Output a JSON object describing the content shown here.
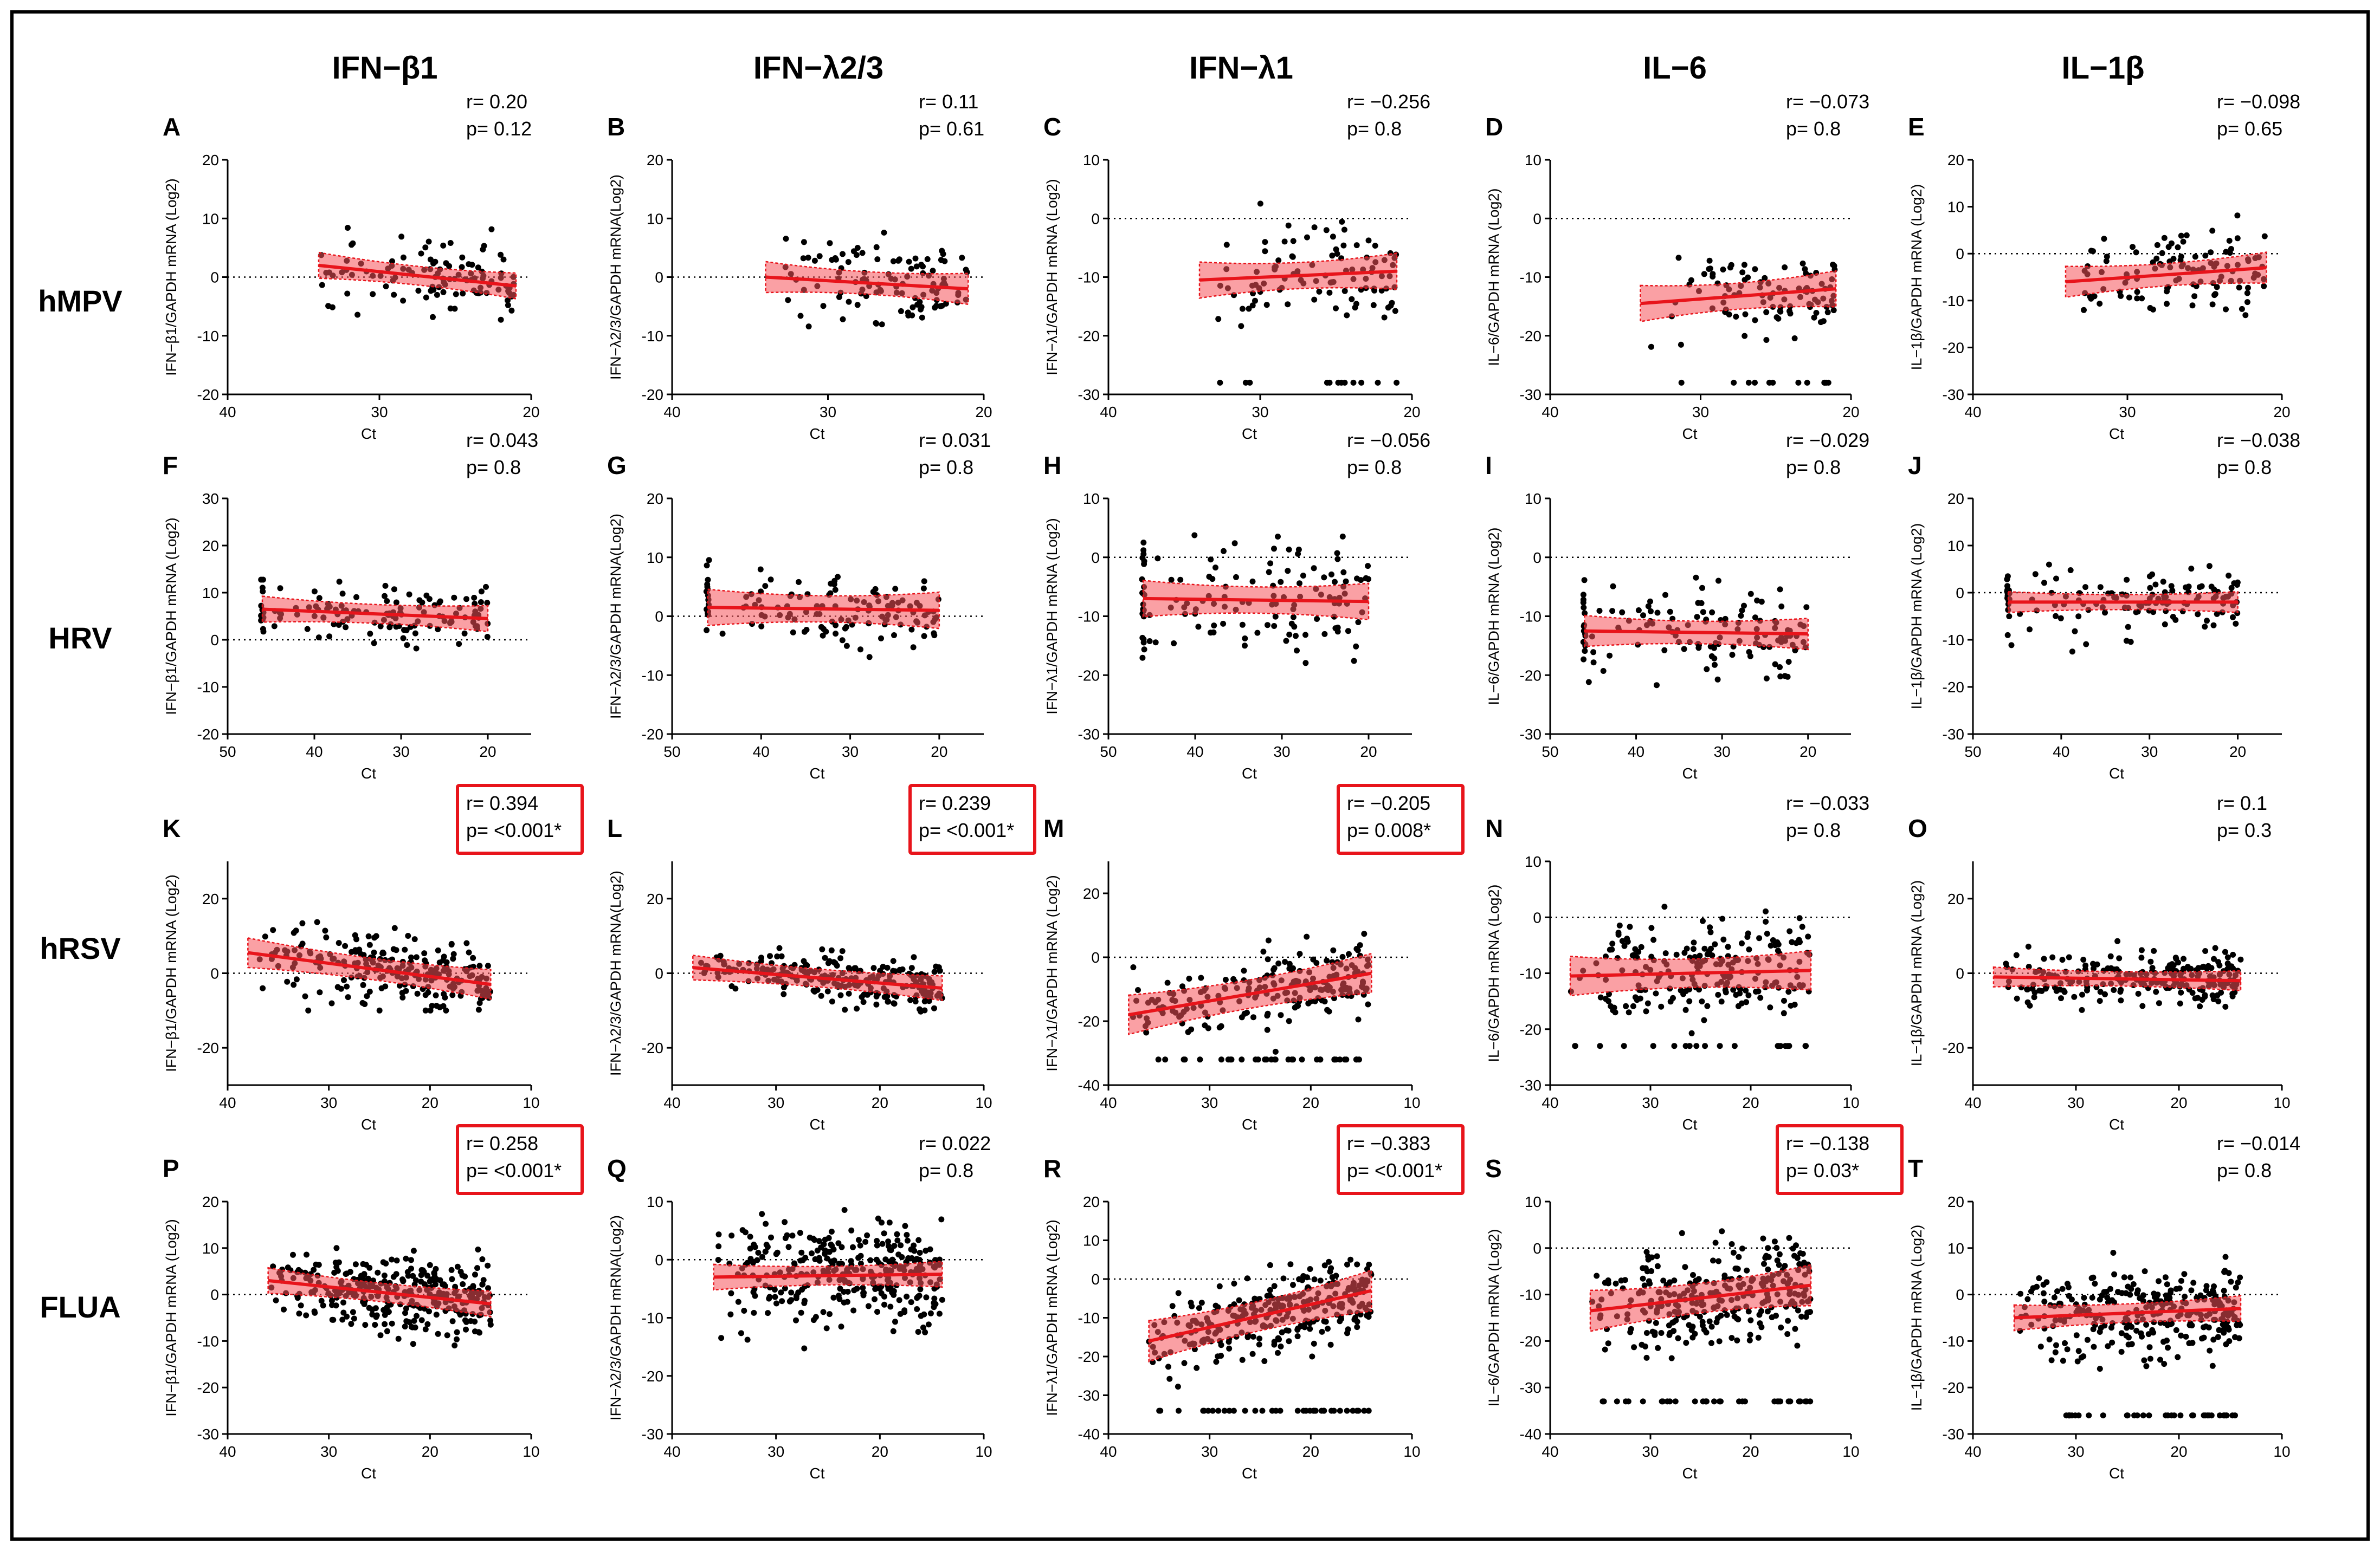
{
  "figure": {
    "column_titles": [
      "IFN−β1",
      "IFN−λ2/3",
      "IFN−λ1",
      "IL−6",
      "IL−1β"
    ],
    "row_labels": [
      "hMPV",
      "HRV",
      "hRSV",
      "FLUA"
    ],
    "colors": {
      "border": "#000000",
      "fit_line": "#e8141b",
      "ci_band": "#f5525a",
      "highlight_box": "#e8141b",
      "points": "#000000"
    }
  },
  "chart_data": [
    {
      "letter": "A",
      "type": "scatter",
      "title": "IFN−β1",
      "row": "hMPV",
      "ylabel": "IFN−β1/GAPDH mRNA (Log2)",
      "xlabel": "Ct",
      "xlim": [
        40,
        20
      ],
      "ylim": [
        -20,
        20
      ],
      "xticks": [
        40,
        30,
        20
      ],
      "yticks": [
        20,
        10,
        0,
        -10,
        -20
      ],
      "r": "r= 0.20",
      "p": "p= 0.12",
      "significant": false,
      "fit": {
        "x": [
          34,
          21
        ],
        "y": [
          2,
          -1.5
        ]
      },
      "ci": 0.25,
      "n": 110,
      "xr": [
        34,
        21
      ],
      "yspread": [
        -10,
        14
      ],
      "floor": null
    },
    {
      "letter": "B",
      "type": "scatter",
      "title": "IFN−λ2/3",
      "row": "hMPV",
      "ylabel": "IFN−λ2/3/GAPDH mRNA(Log2)",
      "xlabel": "Ct",
      "xlim": [
        40,
        20
      ],
      "ylim": [
        -20,
        20
      ],
      "xticks": [
        40,
        30,
        20
      ],
      "yticks": [
        20,
        10,
        0,
        -10,
        -20
      ],
      "r": "r= 0.11",
      "p": "p= 0.61",
      "significant": false,
      "fit": {
        "x": [
          34,
          21
        ],
        "y": [
          0,
          -2
        ]
      },
      "ci": 0.3,
      "n": 110,
      "xr": [
        34,
        21
      ],
      "yspread": [
        -18,
        11
      ],
      "floor": null
    },
    {
      "letter": "C",
      "type": "scatter",
      "title": "IFN−λ1",
      "row": "hMPV",
      "ylabel": "IFN−λ1/GAPDH mRNA (Log2)",
      "xlabel": "Ct",
      "xlim": [
        40,
        20
      ],
      "ylim": [
        -30,
        10
      ],
      "xticks": [
        40,
        30,
        20
      ],
      "yticks": [
        10,
        0,
        -10,
        -20,
        -30
      ],
      "r": "r= −0.256",
      "p": "p= 0.8",
      "significant": false,
      "fit": {
        "x": [
          34,
          21
        ],
        "y": [
          -10.5,
          -9
        ]
      },
      "ci": 0.35,
      "n": 110,
      "xr": [
        34,
        21
      ],
      "yspread": [
        -28,
        7
      ],
      "floor": -28
    },
    {
      "letter": "D",
      "type": "scatter",
      "title": "IL−6",
      "row": "hMPV",
      "ylabel": "IL−6/GAPDH mRNA (Log2)",
      "xlabel": "Ct",
      "xlim": [
        40,
        20
      ],
      "ylim": [
        -30,
        10
      ],
      "xticks": [
        40,
        30,
        20
      ],
      "yticks": [
        10,
        0,
        -10,
        -20,
        -30
      ],
      "r": "r= −0.073",
      "p": "p= 0.8",
      "significant": false,
      "fit": {
        "x": [
          34,
          21
        ],
        "y": [
          -14.5,
          -12
        ]
      },
      "ci": 0.35,
      "n": 110,
      "xr": [
        34,
        21
      ],
      "yspread": [
        -28,
        0
      ],
      "floor": -28
    },
    {
      "letter": "E",
      "type": "scatter",
      "title": "IL−1β",
      "row": "hMPV",
      "ylabel": "IL−1β/GAPDH mRNA (Log2)",
      "xlabel": "Ct",
      "xlim": [
        40,
        20
      ],
      "ylim": [
        -30,
        20
      ],
      "xticks": [
        40,
        30,
        20
      ],
      "yticks": [
        20,
        10,
        0,
        -10,
        -20,
        -30
      ],
      "r": "r= −0.098",
      "p": "p= 0.65",
      "significant": false,
      "fit": {
        "x": [
          34,
          21
        ],
        "y": [
          -6,
          -3
        ]
      },
      "ci": 0.3,
      "n": 110,
      "xr": [
        34,
        21
      ],
      "yspread": [
        -26,
        13
      ],
      "floor": null
    },
    {
      "letter": "F",
      "type": "scatter",
      "title": "IFN−β1",
      "row": "HRV",
      "ylabel": "IFN−β1/GAPDH mRNA (Log2)",
      "xlabel": "Ct",
      "xlim": [
        50,
        15
      ],
      "ylim": [
        -20,
        30
      ],
      "xticks": [
        50,
        40,
        30,
        20
      ],
      "yticks": [
        30,
        20,
        10,
        0,
        -10,
        -20
      ],
      "r": "r= 0.043",
      "p": "p= 0.8",
      "significant": false,
      "fit": {
        "x": [
          46,
          20
        ],
        "y": [
          6.5,
          4.5
        ]
      },
      "ci": 0.25,
      "n": 130,
      "xr": [
        46,
        20
      ],
      "yspread": [
        -3,
        21
      ],
      "floor": null,
      "stack": 46
    },
    {
      "letter": "G",
      "type": "scatter",
      "title": "IFN−λ2/3",
      "row": "HRV",
      "ylabel": "IFN−λ2/3/GAPDH mRNA(Log2)",
      "xlabel": "Ct",
      "xlim": [
        50,
        15
      ],
      "ylim": [
        -20,
        20
      ],
      "xticks": [
        50,
        40,
        30,
        20
      ],
      "yticks": [
        20,
        10,
        0,
        -10,
        -20
      ],
      "r": "r= 0.031",
      "p": "p= 0.8",
      "significant": false,
      "fit": {
        "x": [
          46,
          20
        ],
        "y": [
          1.5,
          1
        ]
      },
      "ci": 0.35,
      "n": 130,
      "xr": [
        46,
        20
      ],
      "yspread": [
        -10,
        17
      ],
      "floor": null,
      "stack": 46
    },
    {
      "letter": "H",
      "type": "scatter",
      "title": "IFN−λ1",
      "row": "HRV",
      "ylabel": "IFN−λ1/GAPDH mRNA (Log2)",
      "xlabel": "Ct",
      "xlim": [
        50,
        15
      ],
      "ylim": [
        -30,
        10
      ],
      "xticks": [
        50,
        40,
        30,
        20
      ],
      "yticks": [
        10,
        0,
        -10,
        -20,
        -30
      ],
      "r": "r= −0.056",
      "p": "p= 0.8",
      "significant": false,
      "fit": {
        "x": [
          46,
          20
        ],
        "y": [
          -7,
          -7.5
        ]
      },
      "ci": 0.35,
      "n": 130,
      "xr": [
        46,
        20
      ],
      "yspread": [
        -28,
        8
      ],
      "floor": null,
      "stack": 46
    },
    {
      "letter": "I",
      "type": "scatter",
      "title": "IL−6",
      "row": "HRV",
      "ylabel": "IL−6/GAPDH mRNA (Log2)",
      "xlabel": "Ct",
      "xlim": [
        50,
        15
      ],
      "ylim": [
        -30,
        10
      ],
      "xticks": [
        50,
        40,
        30,
        20
      ],
      "yticks": [
        10,
        0,
        -10,
        -20,
        -30
      ],
      "r": "r= −0.029",
      "p": "p= 0.8",
      "significant": false,
      "fit": {
        "x": [
          46,
          20
        ],
        "y": [
          -12.5,
          -13
        ]
      },
      "ci": 0.3,
      "n": 130,
      "xr": [
        46,
        20
      ],
      "yspread": [
        -26,
        5
      ],
      "floor": null,
      "stack": 46
    },
    {
      "letter": "J",
      "type": "scatter",
      "title": "IL−1β",
      "row": "HRV",
      "ylabel": "IL−1β/GAPDH mRNA (Log2)",
      "xlabel": "Ct",
      "xlim": [
        50,
        15
      ],
      "ylim": [
        -30,
        20
      ],
      "xticks": [
        50,
        40,
        30,
        20
      ],
      "yticks": [
        20,
        10,
        0,
        -10,
        -20,
        -30
      ],
      "r": "r= −0.038",
      "p": "p= 0.8",
      "significant": false,
      "fit": {
        "x": [
          46,
          20
        ],
        "y": [
          -2,
          -2
        ]
      },
      "ci": 0.2,
      "n": 130,
      "xr": [
        46,
        20
      ],
      "yspread": [
        -18,
        11
      ],
      "floor": null,
      "stack": 46
    },
    {
      "letter": "K",
      "type": "scatter",
      "title": "IFN−β1",
      "row": "hRSV",
      "ylabel": "IFN−β1/GAPDH mRNA (Log2)",
      "xlabel": "Ct",
      "xlim": [
        40,
        10
      ],
      "ylim": [
        -30,
        30
      ],
      "xticks": [
        40,
        30,
        20,
        10
      ],
      "yticks": [
        20,
        0,
        -20
      ],
      "r": "r= 0.394",
      "p": "p= <0.001*",
      "significant": true,
      "fit": {
        "x": [
          38,
          14
        ],
        "y": [
          5.5,
          -3
        ]
      },
      "ci": 0.3,
      "n": 230,
      "xr": [
        38,
        14
      ],
      "yspread": [
        -10,
        25
      ],
      "floor": null
    },
    {
      "letter": "L",
      "type": "scatter",
      "title": "IFN−λ2/3",
      "row": "hRSV",
      "ylabel": "IFN−λ2/3/GAPDH mRNA(Log2)",
      "xlabel": "Ct",
      "xlim": [
        40,
        10
      ],
      "ylim": [
        -30,
        30
      ],
      "xticks": [
        40,
        30,
        20,
        10
      ],
      "yticks": [
        20,
        0,
        -20
      ],
      "r": "r= 0.239",
      "p": "p= <0.001*",
      "significant": true,
      "fit": {
        "x": [
          38,
          14
        ],
        "y": [
          1.5,
          -4
        ]
      },
      "ci": 0.25,
      "n": 230,
      "xr": [
        38,
        14
      ],
      "yspread": [
        -15,
        10
      ],
      "floor": null
    },
    {
      "letter": "M",
      "type": "scatter",
      "title": "IFN−λ1",
      "row": "hRSV",
      "ylabel": "IFN−λ1/GAPDH mRNA (Log2)",
      "xlabel": "Ct",
      "xlim": [
        40,
        10
      ],
      "ylim": [
        -40,
        30
      ],
      "xticks": [
        40,
        30,
        20,
        10
      ],
      "yticks": [
        20,
        0,
        -20,
        -40
      ],
      "r": "r= −0.205",
      "p": "p= 0.008*",
      "significant": true,
      "fit": {
        "x": [
          38,
          14
        ],
        "y": [
          -18,
          -5
        ]
      },
      "ci": 0.4,
      "n": 230,
      "xr": [
        38,
        14
      ],
      "yspread": [
        -32,
        17
      ],
      "floor": -32
    },
    {
      "letter": "N",
      "type": "scatter",
      "title": "IL−6",
      "row": "hRSV",
      "ylabel": "IL−6/GAPDH mRNA (Log2)",
      "xlabel": "Ct",
      "xlim": [
        40,
        10
      ],
      "ylim": [
        -30,
        10
      ],
      "xticks": [
        40,
        30,
        20,
        10
      ],
      "yticks": [
        10,
        0,
        -10,
        -20,
        -30
      ],
      "r": "r= −0.033",
      "p": "p= 0.8",
      "significant": false,
      "fit": {
        "x": [
          38,
          14
        ],
        "y": [
          -10.5,
          -9.5
        ]
      },
      "ci": 0.4,
      "n": 230,
      "xr": [
        38,
        14
      ],
      "yspread": [
        -23,
        10
      ],
      "floor": -23
    },
    {
      "letter": "O",
      "type": "scatter",
      "title": "IL−1β",
      "row": "hRSV",
      "ylabel": "IL−1β/GAPDH mRNA (Log2)",
      "xlabel": "Ct",
      "xlim": [
        40,
        10
      ],
      "ylim": [
        -30,
        30
      ],
      "xticks": [
        40,
        30,
        20,
        10
      ],
      "yticks": [
        20,
        0,
        -20
      ],
      "r": "r= 0.1",
      "p": "p= 0.3",
      "significant": false,
      "fit": {
        "x": [
          38,
          14
        ],
        "y": [
          -1,
          -2
        ]
      },
      "ci": 0.2,
      "n": 230,
      "xr": [
        38,
        14
      ],
      "yspread": [
        -15,
        13
      ],
      "floor": null
    },
    {
      "letter": "P",
      "type": "scatter",
      "title": "IFN−β1",
      "row": "FLUA",
      "ylabel": "IFN−β1/GAPDH mRNA (Log2)",
      "xlabel": "Ct",
      "xlim": [
        40,
        10
      ],
      "ylim": [
        -30,
        20
      ],
      "xticks": [
        40,
        30,
        20,
        10
      ],
      "yticks": [
        20,
        10,
        0,
        -10,
        -20,
        -30
      ],
      "r": "r= 0.258",
      "p": "p= <0.001*",
      "significant": true,
      "fit": {
        "x": [
          36,
          14
        ],
        "y": [
          3,
          -2
        ]
      },
      "ci": 0.25,
      "n": 320,
      "xr": [
        36,
        14
      ],
      "yspread": [
        -21,
        10
      ],
      "floor": null
    },
    {
      "letter": "Q",
      "type": "scatter",
      "title": "IFN−λ2/3",
      "row": "FLUA",
      "ylabel": "IFN−λ2/3/GAPDH mRNA(Log2)",
      "xlabel": "Ct",
      "xlim": [
        40,
        10
      ],
      "ylim": [
        -30,
        10
      ],
      "xticks": [
        40,
        30,
        20,
        10
      ],
      "yticks": [
        10,
        0,
        -10,
        -20,
        -30
      ],
      "r": "r= 0.022",
      "p": "p= 0.8",
      "significant": false,
      "fit": {
        "x": [
          36,
          14
        ],
        "y": [
          -3,
          -2.5
        ]
      },
      "ci": 0.25,
      "n": 320,
      "xr": [
        36,
        14
      ],
      "yspread": [
        -25,
        9
      ],
      "floor": null
    },
    {
      "letter": "R",
      "type": "scatter",
      "title": "IFN−λ1",
      "row": "FLUA",
      "ylabel": "IFN−λ1/GAPDH mRNA (Log2)",
      "xlabel": "Ct",
      "xlim": [
        40,
        10
      ],
      "ylim": [
        -40,
        20
      ],
      "xticks": [
        40,
        30,
        20,
        10
      ],
      "yticks": [
        20,
        10,
        0,
        -10,
        -20,
        -30,
        -40
      ],
      "r": "r= −0.383",
      "p": "p= <0.001*",
      "significant": true,
      "fit": {
        "x": [
          36,
          14
        ],
        "y": [
          -16,
          -3
        ]
      },
      "ci": 0.4,
      "n": 320,
      "xr": [
        36,
        14
      ],
      "yspread": [
        -34,
        6
      ],
      "floor": -34
    },
    {
      "letter": "S",
      "type": "scatter",
      "title": "IL−6",
      "row": "FLUA",
      "ylabel": "IL−6/GAPDH mRNA (Log2)",
      "xlabel": "Ct",
      "xlim": [
        40,
        10
      ],
      "ylim": [
        -40,
        10
      ],
      "xticks": [
        40,
        30,
        20,
        10
      ],
      "yticks": [
        10,
        0,
        -10,
        -20,
        -30,
        -40
      ],
      "r": "r= −0.138",
      "p": "p= 0.03*",
      "significant": true,
      "fit": {
        "x": [
          36,
          14
        ],
        "y": [
          -13.5,
          -8
        ]
      },
      "ci": 0.4,
      "n": 320,
      "xr": [
        36,
        14
      ],
      "yspread": [
        -33,
        7
      ],
      "floor": -33
    },
    {
      "letter": "T",
      "type": "scatter",
      "title": "IL−1β",
      "row": "FLUA",
      "ylabel": "IL−1β/GAPDH mRNA (Log2)",
      "xlabel": "Ct",
      "xlim": [
        40,
        10
      ],
      "ylim": [
        -30,
        20
      ],
      "xticks": [
        40,
        30,
        20,
        10
      ],
      "yticks": [
        20,
        10,
        0,
        -10,
        -20,
        -30
      ],
      "r": "r= −0.014",
      "p": "p= 0.8",
      "significant": false,
      "fit": {
        "x": [
          36,
          14
        ],
        "y": [
          -5,
          -3
        ]
      },
      "ci": 0.25,
      "n": 320,
      "xr": [
        36,
        14
      ],
      "yspread": [
        -26,
        11
      ],
      "floor": -26
    }
  ]
}
